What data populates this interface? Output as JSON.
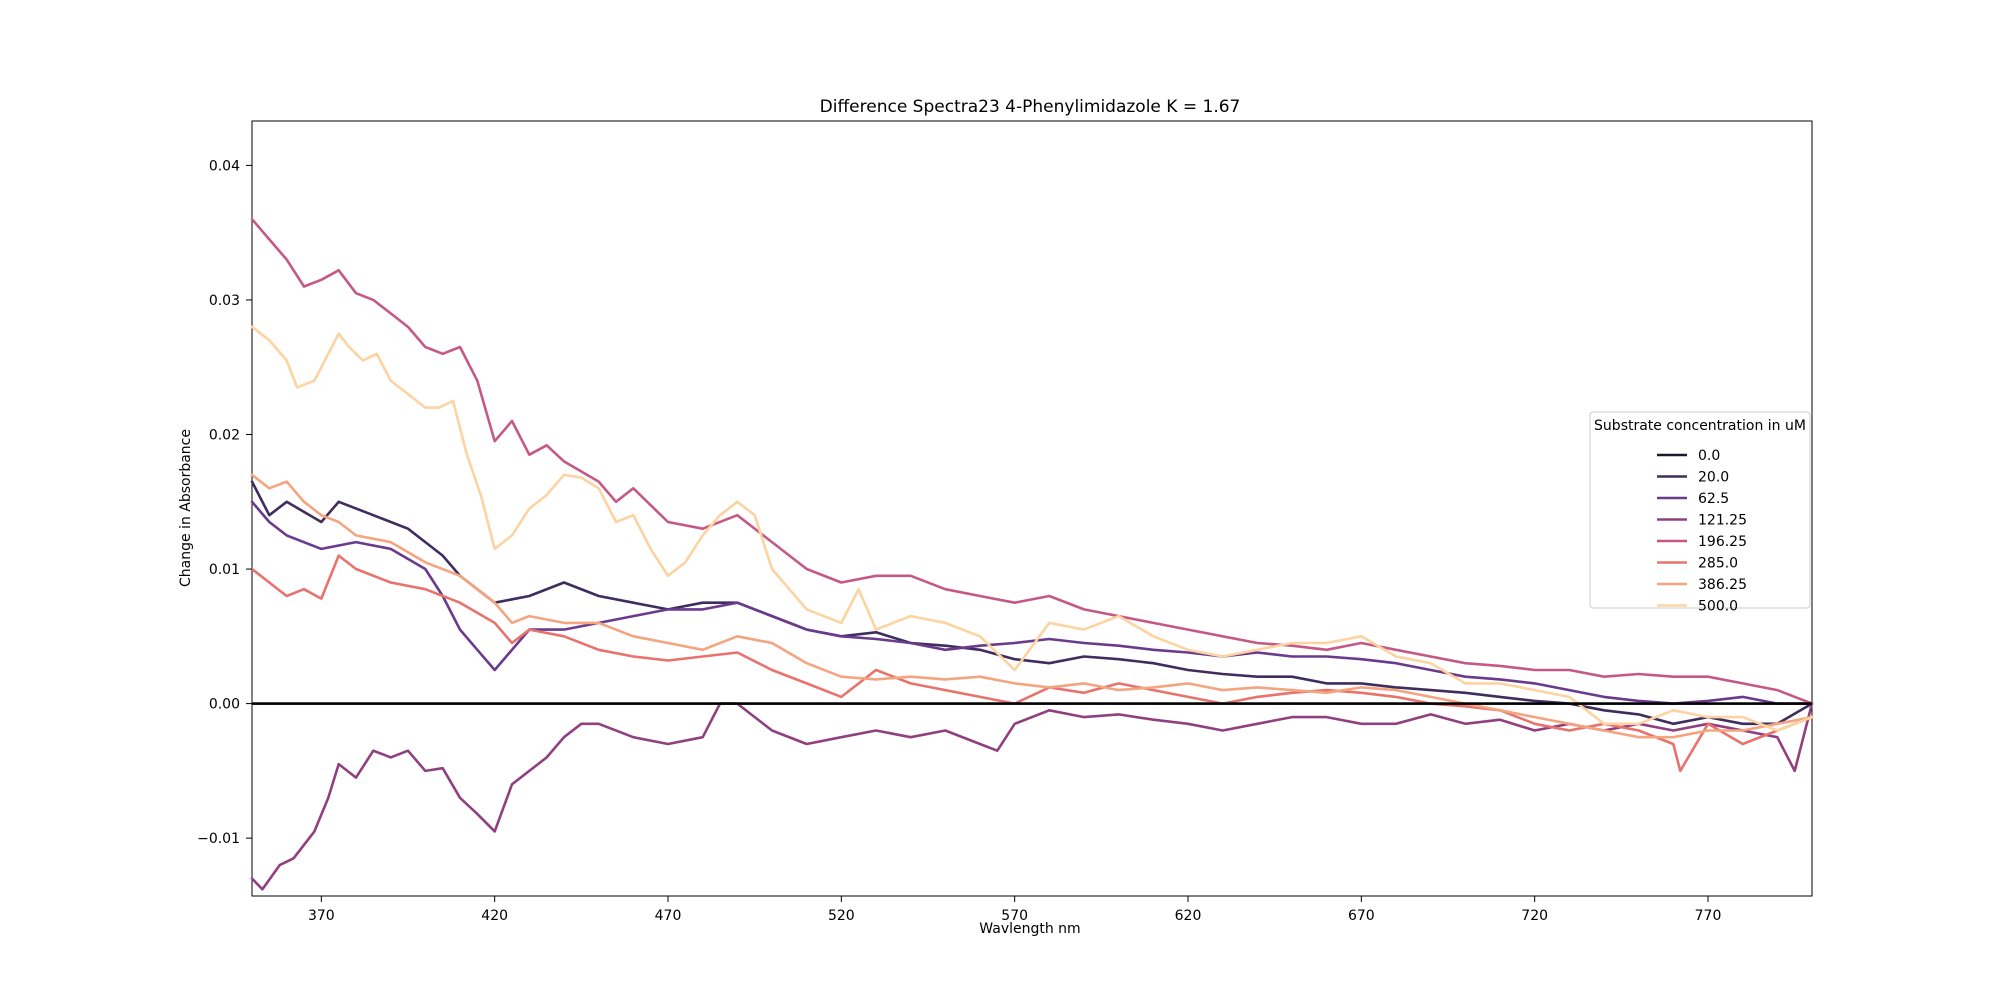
{
  "chart_data": {
    "type": "line",
    "title": "Difference Spectra23 4-Phenylimidazole  K = 1.67",
    "xlabel": "Wavlength nm",
    "ylabel": "Change in Absorbance",
    "xlim": [
      350,
      800
    ],
    "ylim": [
      -0.0143,
      0.0433
    ],
    "xticks": [
      370,
      420,
      470,
      520,
      570,
      620,
      670,
      720,
      770
    ],
    "yticks": [
      -0.01,
      0.0,
      0.01,
      0.02,
      0.03,
      0.04
    ],
    "ytick_labels": [
      "−0.01",
      "0.00",
      "0.01",
      "0.02",
      "0.03",
      "0.04"
    ],
    "grid": false,
    "legend": {
      "title": "Substrate concentration in uM",
      "position": "center-right"
    },
    "zero_line": {
      "y": 0.0,
      "color": "#000000"
    },
    "series": [
      {
        "name": "0.0",
        "color": "#1d1a2e",
        "x": [
          350,
          800
        ],
        "y": [
          0.0,
          0.0
        ]
      },
      {
        "name": "20.0",
        "color": "#3f2d5e",
        "x": [
          350,
          355,
          360,
          370,
          375,
          385,
          395,
          400,
          405,
          410,
          415,
          420,
          430,
          440,
          450,
          460,
          470,
          480,
          490,
          500,
          510,
          520,
          530,
          540,
          550,
          560,
          570,
          580,
          590,
          600,
          610,
          620,
          630,
          640,
          650,
          660,
          670,
          680,
          690,
          700,
          710,
          720,
          730,
          740,
          750,
          760,
          770,
          780,
          790,
          800
        ],
        "y": [
          0.0165,
          0.014,
          0.015,
          0.0135,
          0.015,
          0.014,
          0.013,
          0.012,
          0.011,
          0.0095,
          0.0085,
          0.0075,
          0.008,
          0.009,
          0.008,
          0.0075,
          0.007,
          0.0075,
          0.0075,
          0.0065,
          0.0055,
          0.005,
          0.0053,
          0.0045,
          0.0043,
          0.004,
          0.0033,
          0.003,
          0.0035,
          0.0033,
          0.003,
          0.0025,
          0.0022,
          0.002,
          0.002,
          0.0015,
          0.0015,
          0.0012,
          0.001,
          0.0008,
          0.0005,
          0.0002,
          0.0,
          -0.0005,
          -0.0008,
          -0.0015,
          -0.001,
          -0.0015,
          -0.0015,
          0.0
        ]
      },
      {
        "name": "62.5",
        "color": "#6a3a8c",
        "x": [
          350,
          355,
          360,
          370,
          380,
          390,
          400,
          405,
          410,
          415,
          420,
          425,
          430,
          440,
          450,
          460,
          470,
          480,
          490,
          500,
          510,
          520,
          530,
          540,
          550,
          560,
          570,
          580,
          590,
          600,
          610,
          620,
          630,
          640,
          650,
          660,
          670,
          680,
          690,
          700,
          710,
          720,
          730,
          740,
          750,
          760,
          770,
          780,
          790,
          800
        ],
        "y": [
          0.015,
          0.0135,
          0.0125,
          0.0115,
          0.012,
          0.0115,
          0.01,
          0.008,
          0.0055,
          0.004,
          0.0025,
          0.004,
          0.0055,
          0.0055,
          0.006,
          0.0065,
          0.007,
          0.007,
          0.0075,
          0.0065,
          0.0055,
          0.005,
          0.0048,
          0.0045,
          0.004,
          0.0043,
          0.0045,
          0.0048,
          0.0045,
          0.0043,
          0.004,
          0.0038,
          0.0035,
          0.0038,
          0.0035,
          0.0035,
          0.0033,
          0.003,
          0.0025,
          0.002,
          0.0018,
          0.0015,
          0.001,
          0.0005,
          0.0002,
          0.0,
          0.0002,
          0.0005,
          0.0,
          0.0
        ]
      },
      {
        "name": "121.25",
        "color": "#90407f",
        "x": [
          350,
          353,
          358,
          362,
          368,
          372,
          375,
          380,
          385,
          390,
          395,
          400,
          405,
          410,
          415,
          420,
          425,
          430,
          435,
          440,
          445,
          450,
          460,
          470,
          480,
          485,
          490,
          500,
          510,
          520,
          530,
          540,
          550,
          560,
          565,
          570,
          580,
          590,
          600,
          610,
          620,
          630,
          640,
          650,
          660,
          670,
          680,
          690,
          700,
          710,
          720,
          730,
          740,
          750,
          760,
          770,
          780,
          790,
          795,
          800
        ],
        "y": [
          -0.013,
          -0.0138,
          -0.012,
          -0.0115,
          -0.0095,
          -0.007,
          -0.0045,
          -0.0055,
          -0.0035,
          -0.004,
          -0.0035,
          -0.005,
          -0.0048,
          -0.007,
          -0.0082,
          -0.0095,
          -0.006,
          -0.005,
          -0.004,
          -0.0025,
          -0.0015,
          -0.0015,
          -0.0025,
          -0.003,
          -0.0025,
          0.0,
          0.0,
          -0.002,
          -0.003,
          -0.0025,
          -0.002,
          -0.0025,
          -0.002,
          -0.003,
          -0.0035,
          -0.0015,
          -0.0005,
          -0.001,
          -0.0008,
          -0.0012,
          -0.0015,
          -0.002,
          -0.0015,
          -0.001,
          -0.001,
          -0.0015,
          -0.0015,
          -0.0008,
          -0.0015,
          -0.0012,
          -0.002,
          -0.0015,
          -0.002,
          -0.0015,
          -0.002,
          -0.0015,
          -0.002,
          -0.0025,
          -0.005,
          0.0
        ]
      },
      {
        "name": "196.25",
        "color": "#c55986",
        "x": [
          350,
          355,
          360,
          365,
          370,
          375,
          380,
          385,
          390,
          395,
          400,
          405,
          410,
          415,
          420,
          425,
          430,
          435,
          440,
          450,
          455,
          460,
          470,
          480,
          490,
          500,
          510,
          520,
          530,
          540,
          550,
          560,
          570,
          580,
          590,
          600,
          610,
          620,
          630,
          640,
          650,
          660,
          670,
          680,
          690,
          700,
          710,
          720,
          730,
          740,
          750,
          760,
          770,
          780,
          790,
          800
        ],
        "y": [
          0.036,
          0.0345,
          0.033,
          0.031,
          0.0315,
          0.0322,
          0.0305,
          0.03,
          0.029,
          0.028,
          0.0265,
          0.026,
          0.0265,
          0.024,
          0.0195,
          0.021,
          0.0185,
          0.0192,
          0.018,
          0.0165,
          0.015,
          0.016,
          0.0135,
          0.013,
          0.014,
          0.012,
          0.01,
          0.009,
          0.0095,
          0.0095,
          0.0085,
          0.008,
          0.0075,
          0.008,
          0.007,
          0.0065,
          0.006,
          0.0055,
          0.005,
          0.0045,
          0.0043,
          0.004,
          0.0045,
          0.004,
          0.0035,
          0.003,
          0.0028,
          0.0025,
          0.0025,
          0.002,
          0.0022,
          0.002,
          0.002,
          0.0015,
          0.001,
          0.0
        ]
      },
      {
        "name": "285.0",
        "color": "#e8736c",
        "x": [
          350,
          355,
          360,
          365,
          370,
          375,
          380,
          390,
          400,
          410,
          420,
          425,
          430,
          440,
          450,
          460,
          470,
          480,
          490,
          500,
          510,
          520,
          530,
          540,
          550,
          560,
          570,
          580,
          590,
          600,
          610,
          620,
          630,
          640,
          650,
          660,
          670,
          680,
          690,
          700,
          710,
          720,
          730,
          740,
          750,
          760,
          762,
          770,
          780,
          790,
          800
        ],
        "y": [
          0.01,
          0.009,
          0.008,
          0.0085,
          0.0078,
          0.011,
          0.01,
          0.009,
          0.0085,
          0.0075,
          0.006,
          0.0045,
          0.0055,
          0.005,
          0.004,
          0.0035,
          0.0032,
          0.0035,
          0.0038,
          0.0025,
          0.0015,
          0.0005,
          0.0025,
          0.0015,
          0.001,
          0.0005,
          0.0,
          0.0012,
          0.0008,
          0.0015,
          0.001,
          0.0005,
          0.0,
          0.0005,
          0.0008,
          0.001,
          0.0008,
          0.0005,
          0.0,
          -0.0002,
          -0.0005,
          -0.0015,
          -0.002,
          -0.0015,
          -0.002,
          -0.003,
          -0.005,
          -0.0015,
          -0.003,
          -0.002,
          -0.001
        ]
      },
      {
        "name": "386.25",
        "color": "#f4a47f",
        "x": [
          350,
          355,
          360,
          365,
          370,
          375,
          380,
          390,
          400,
          410,
          420,
          425,
          430,
          440,
          450,
          460,
          470,
          480,
          490,
          500,
          510,
          520,
          530,
          540,
          550,
          560,
          570,
          580,
          590,
          600,
          610,
          620,
          630,
          640,
          650,
          660,
          670,
          680,
          690,
          700,
          710,
          720,
          730,
          740,
          750,
          760,
          770,
          780,
          790,
          800
        ],
        "y": [
          0.017,
          0.016,
          0.0165,
          0.015,
          0.014,
          0.0135,
          0.0125,
          0.012,
          0.0105,
          0.0095,
          0.0075,
          0.006,
          0.0065,
          0.006,
          0.006,
          0.005,
          0.0045,
          0.004,
          0.005,
          0.0045,
          0.003,
          0.002,
          0.0018,
          0.002,
          0.0018,
          0.002,
          0.0015,
          0.0012,
          0.0015,
          0.001,
          0.0012,
          0.0015,
          0.001,
          0.0012,
          0.001,
          0.0008,
          0.0012,
          0.001,
          0.0005,
          0.0,
          -0.0005,
          -0.001,
          -0.0015,
          -0.002,
          -0.0025,
          -0.0025,
          -0.002,
          -0.002,
          -0.0015,
          -0.001
        ]
      },
      {
        "name": "500.0",
        "color": "#fcd3a1",
        "x": [
          350,
          355,
          360,
          363,
          368,
          372,
          375,
          378,
          382,
          386,
          390,
          395,
          400,
          404,
          408,
          412,
          416,
          420,
          425,
          430,
          435,
          440,
          445,
          450,
          455,
          460,
          465,
          470,
          475,
          480,
          485,
          490,
          495,
          500,
          505,
          510,
          520,
          525,
          530,
          540,
          550,
          560,
          570,
          580,
          590,
          600,
          610,
          620,
          630,
          640,
          650,
          660,
          670,
          680,
          690,
          700,
          710,
          720,
          730,
          740,
          750,
          760,
          770,
          780,
          790,
          800
        ],
        "y": [
          0.028,
          0.027,
          0.0255,
          0.0235,
          0.024,
          0.026,
          0.0275,
          0.0265,
          0.0255,
          0.026,
          0.024,
          0.023,
          0.022,
          0.022,
          0.0225,
          0.0185,
          0.0155,
          0.0115,
          0.0125,
          0.0145,
          0.0155,
          0.017,
          0.0168,
          0.016,
          0.0135,
          0.014,
          0.0115,
          0.0095,
          0.0105,
          0.0125,
          0.014,
          0.015,
          0.014,
          0.01,
          0.0085,
          0.007,
          0.006,
          0.0085,
          0.0055,
          0.0065,
          0.006,
          0.005,
          0.0025,
          0.006,
          0.0055,
          0.0065,
          0.005,
          0.004,
          0.0035,
          0.004,
          0.0045,
          0.0045,
          0.005,
          0.0035,
          0.003,
          0.0015,
          0.0015,
          0.001,
          0.0005,
          -0.0015,
          -0.0015,
          -0.0005,
          -0.001,
          -0.001,
          -0.002,
          -0.001
        ]
      }
    ]
  }
}
